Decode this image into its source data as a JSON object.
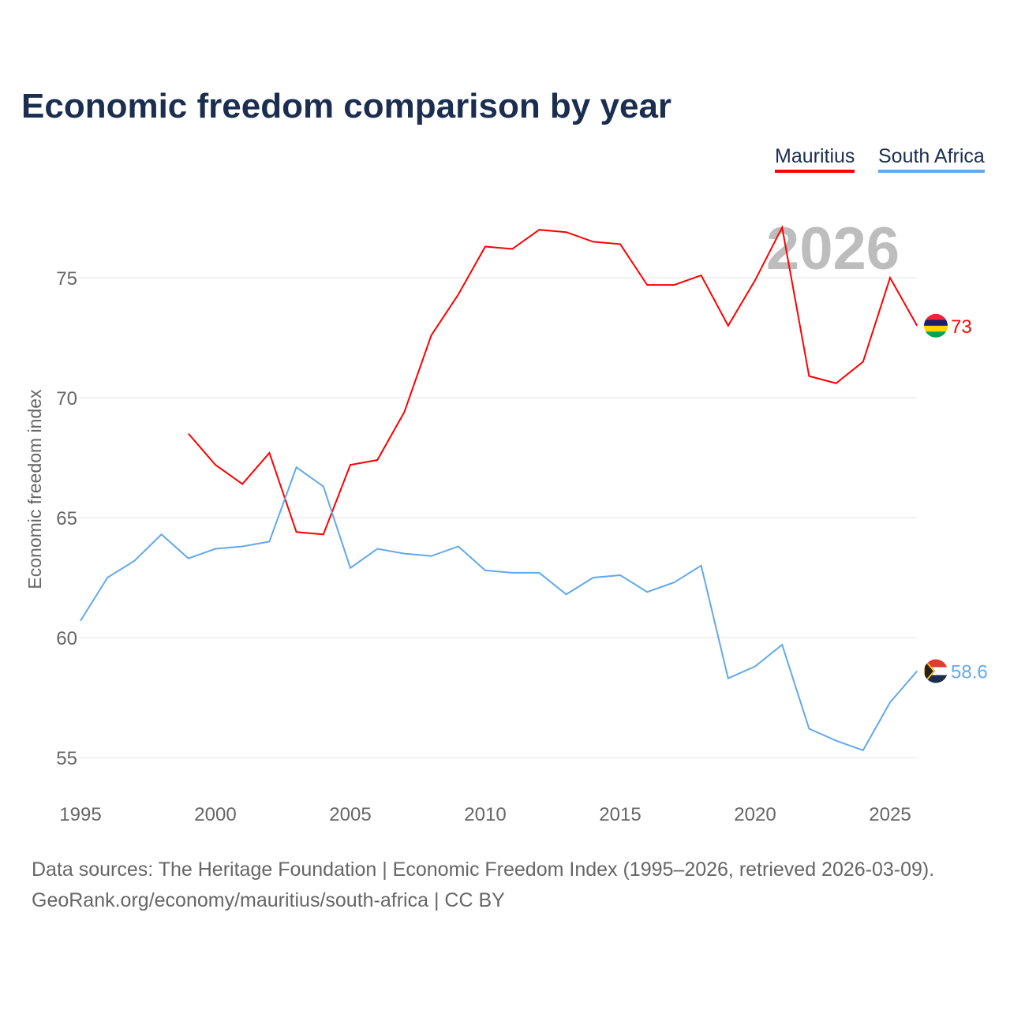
{
  "chart_data": {
    "type": "line",
    "title": "Economic freedom comparison by year",
    "xlabel": "",
    "ylabel": "Economic freedom index",
    "xlim": [
      1995,
      2026
    ],
    "ylim": [
      55,
      77.5
    ],
    "xticks": [
      "1995",
      "2000",
      "2005",
      "2010",
      "2015",
      "2020",
      "2025"
    ],
    "yticks": [
      "55",
      "60",
      "65",
      "70",
      "75"
    ],
    "grid": true,
    "legend_position": "top-right",
    "year_label": "2026",
    "series": [
      {
        "name": "Mauritius",
        "color": "#ff0000",
        "end_label": "73",
        "x": [
          1999,
          2000,
          2001,
          2002,
          2003,
          2004,
          2005,
          2006,
          2007,
          2008,
          2009,
          2010,
          2011,
          2012,
          2013,
          2014,
          2015,
          2016,
          2017,
          2018,
          2019,
          2020,
          2021,
          2022,
          2023,
          2024,
          2025,
          2026
        ],
        "values": [
          68.5,
          67.2,
          66.4,
          67.7,
          64.4,
          64.3,
          67.2,
          67.4,
          69.4,
          72.6,
          74.3,
          76.3,
          76.2,
          77.0,
          76.9,
          76.5,
          76.4,
          74.7,
          74.7,
          75.1,
          73.0,
          74.9,
          77.1,
          70.9,
          70.6,
          71.5,
          75.0,
          73.0
        ]
      },
      {
        "name": "South Africa",
        "color": "#62a8ee",
        "end_label": "58.6",
        "x": [
          1995,
          1996,
          1997,
          1998,
          1999,
          2000,
          2001,
          2002,
          2003,
          2004,
          2005,
          2006,
          2007,
          2008,
          2009,
          2010,
          2011,
          2012,
          2013,
          2014,
          2015,
          2016,
          2017,
          2018,
          2019,
          2020,
          2021,
          2022,
          2023,
          2024,
          2025,
          2026
        ],
        "values": [
          60.7,
          62.5,
          63.2,
          64.3,
          63.3,
          63.7,
          63.8,
          64.0,
          67.1,
          66.3,
          62.9,
          63.7,
          63.5,
          63.4,
          63.8,
          62.8,
          62.7,
          62.7,
          61.8,
          62.5,
          62.6,
          61.9,
          62.3,
          63.0,
          58.3,
          58.8,
          59.7,
          56.2,
          55.7,
          55.3,
          57.3,
          58.6
        ]
      }
    ]
  },
  "footer": {
    "line1": "Data sources: The Heritage Foundation | Economic Freedom Index (1995–2026, retrieved 2026-03-09).",
    "line2": "GeoRank.org/economy/mauritius/south-africa | CC BY"
  }
}
